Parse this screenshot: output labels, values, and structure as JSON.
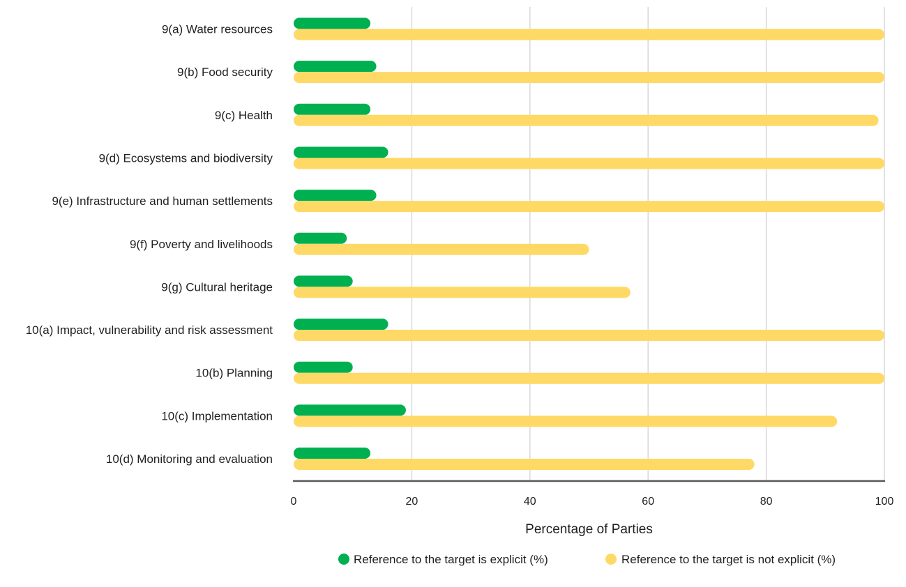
{
  "chart_data": {
    "type": "bar",
    "orientation": "horizontal",
    "title": "",
    "xlabel": "Percentage of Parties",
    "ylabel": "",
    "xlim": [
      0,
      100
    ],
    "xticks": [
      "0",
      "20",
      "40",
      "60",
      "80",
      "100"
    ],
    "grid": true,
    "legend_position": "bottom",
    "categories": [
      "9(a) Water resources",
      "9(b) Food security",
      "9(c) Health",
      "9(d) Ecosystems and biodiversity",
      "9(e) Infrastructure and human settlements",
      "9(f) Poverty and livelihoods",
      "9(g) Cultural heritage",
      "10(a) Impact, vulnerability and risk assessment",
      "10(b) Planning",
      "10(c) Implementation",
      "10(d) Monitoring and evaluation"
    ],
    "series": [
      {
        "name": "Reference to the target is explicit (%)",
        "color": "#00b050",
        "values": [
          13,
          14,
          13,
          16,
          14,
          9,
          10,
          16,
          10,
          19,
          13
        ]
      },
      {
        "name": "Reference to the target is not explicit (%)",
        "color": "#ffd966",
        "values": [
          100,
          100,
          99,
          100,
          100,
          50,
          57,
          100,
          100,
          92,
          78
        ]
      }
    ]
  }
}
